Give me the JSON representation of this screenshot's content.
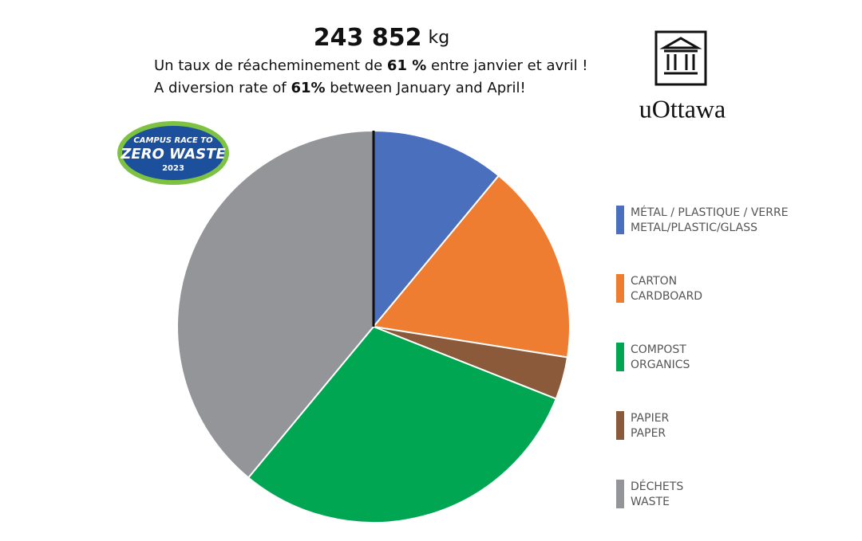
{
  "chart_data": {
    "type": "pie",
    "headline": {
      "amount": "243 852",
      "unit": "kg"
    },
    "line_fr": {
      "before": "Un taux de réacheminement de ",
      "bold": "61 %",
      "after": " entre janvier et avril !"
    },
    "line_en": {
      "before": "A diversion rate of ",
      "bold": "61%",
      "after": " between January and April!"
    },
    "categories": [
      "MÉTAL / PLASTIQUE / VERRE",
      "CARTON",
      "PAPIER",
      "COMPOST",
      "DÉCHETS"
    ],
    "categories_en": [
      "METAL/PLASTIC/GLASS",
      "CARDBOARD",
      "PAPER",
      "ORGANICS",
      "WASTE"
    ],
    "legend_order": [
      0,
      1,
      3,
      2,
      4
    ],
    "values": [
      11,
      16.5,
      3.5,
      30,
      39
    ],
    "colors": [
      "#4a6fbd",
      "#ee7d31",
      "#8a5a3b",
      "#00a651",
      "#939598"
    ],
    "logo": "uOttawa",
    "badge": {
      "line1": "CAMPUS RACE TO",
      "line2": "ZERO WASTE",
      "line3": "2023"
    }
  }
}
